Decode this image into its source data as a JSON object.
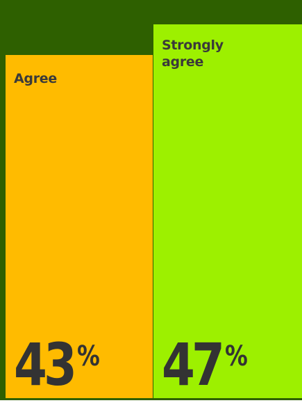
{
  "chart_data": {
    "type": "bar",
    "categories": [
      "Agree",
      "Strongly agree"
    ],
    "values": [
      43,
      47
    ],
    "value_labels": [
      "43",
      "47"
    ],
    "unit": "%",
    "title": "",
    "xlabel": "",
    "ylabel": "",
    "grid": false,
    "colors": {
      "background": "#2e6000",
      "agree": "#ffbb00",
      "strongly_agree": "#9df000",
      "text": "#333333"
    }
  }
}
